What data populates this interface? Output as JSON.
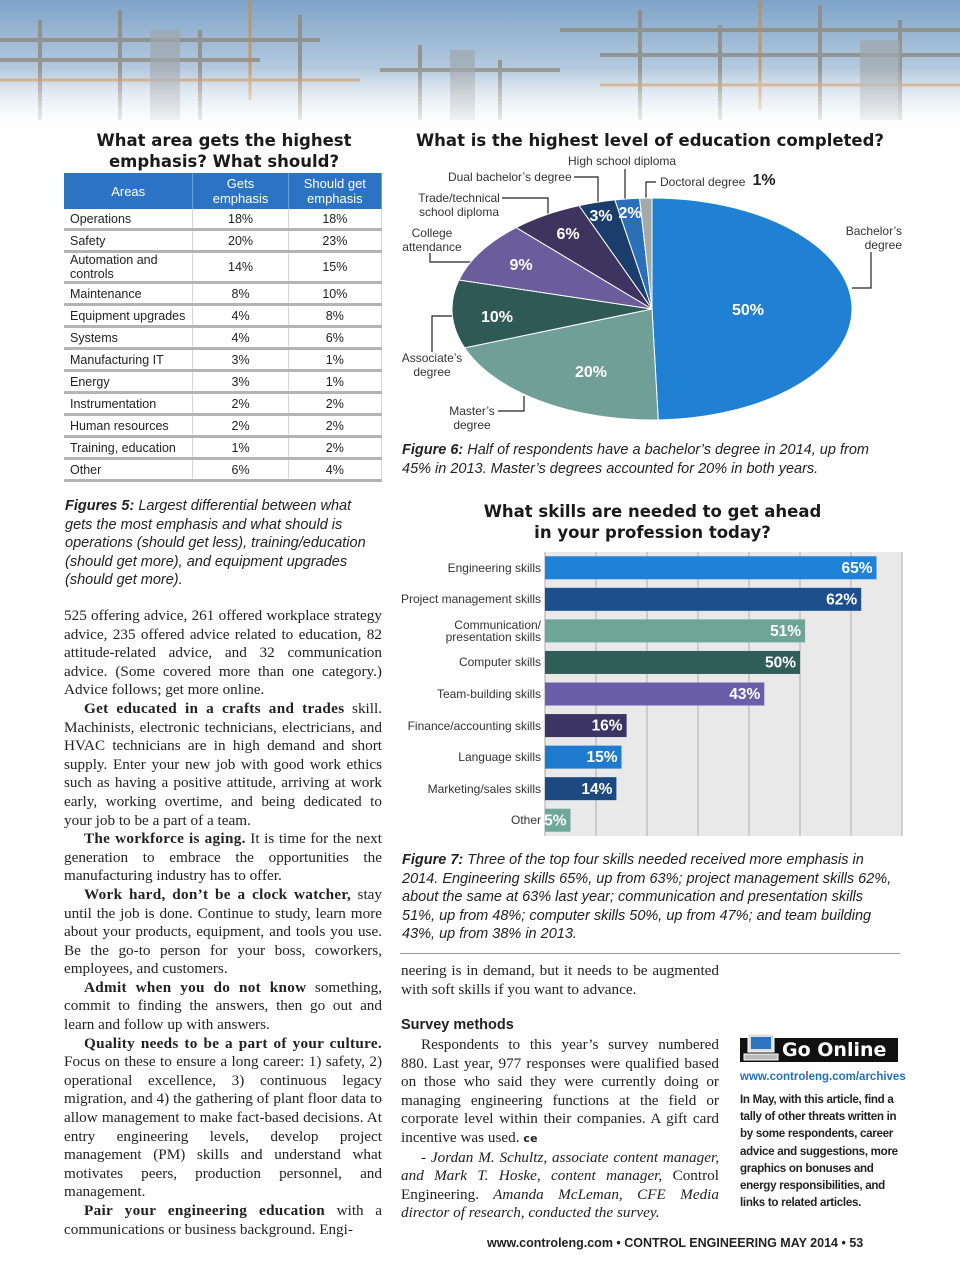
{
  "table": {
    "title": "What area gets the highest emphasis? What should?",
    "header": [
      "Areas",
      "Gets emphasis",
      "Should get emphasis"
    ],
    "rows": [
      [
        "Operations",
        "18%",
        "18%"
      ],
      [
        "Safety",
        "20%",
        "23%"
      ],
      [
        "Automation and controls",
        "14%",
        "15%"
      ],
      [
        "Maintenance",
        "8%",
        "10%"
      ],
      [
        "Equipment upgrades",
        "4%",
        "8%"
      ],
      [
        "Systems",
        "4%",
        "6%"
      ],
      [
        "Manufacturing IT",
        "3%",
        "1%"
      ],
      [
        "Energy",
        "3%",
        "1%"
      ],
      [
        "Instrumentation",
        "2%",
        "2%"
      ],
      [
        "Human resources",
        "2%",
        "2%"
      ],
      [
        "Training, education",
        "1%",
        "2%"
      ],
      [
        "Other",
        "6%",
        "4%"
      ]
    ],
    "caption": {
      "label": "Figures 5:",
      "text": " Largest differential between what gets the most emphasis and what should is operations (should get less), training/education (should get more), and equipment upgrades (should get more)."
    }
  },
  "chart_data": [
    {
      "type": "pie",
      "title": "What is the highest level of education completed?",
      "categories": [
        "Bachelor’s degree",
        "Master’s degree",
        "Associate’s degree",
        "College attendance",
        "Trade/technical school diploma",
        "Dual bachelor’s degree",
        "High school diploma",
        "Doctoral degree"
      ],
      "values": [
        50,
        20,
        10,
        9,
        6,
        3,
        2,
        1
      ],
      "value_labels": [
        "50%",
        "20%",
        "10%",
        "9%",
        "6%",
        "3%",
        "2%",
        "1%"
      ],
      "colors": [
        "#1f80d4",
        "#6f9f97",
        "#2f5955",
        "#6b5c9c",
        "#3d355f",
        "#1b3d6b",
        "#2a70b8",
        "#a3aaa8"
      ],
      "caption": {
        "label": "Figure 6:",
        "text": " Half of respondents have a bachelor’s degree in 2014, up from 45% in 2013. Master’s degrees accounted for 20% in both years."
      }
    },
    {
      "type": "bar",
      "orientation": "horizontal",
      "title": "What skills are needed to get ahead in your profession today?",
      "categories": [
        "Engineering skills",
        "Project management skills",
        "Communication/ presentation skills",
        "Computer skills",
        "Team-building skills",
        "Finance/accounting skills",
        "Language skills",
        "Marketing/sales skills",
        "Other"
      ],
      "values": [
        65,
        62,
        51,
        50,
        43,
        16,
        15,
        14,
        5
      ],
      "value_labels": [
        "65%",
        "62%",
        "51%",
        "50%",
        "43%",
        "16%",
        "15%",
        "14%",
        "5%"
      ],
      "colors": [
        "#1f82d6",
        "#1d4f8c",
        "#6fa597",
        "#2f5f58",
        "#6b5ea8",
        "#3d3466",
        "#1f7bd0",
        "#1c4a80",
        "#6fa898"
      ],
      "xlim": [
        0,
        70
      ],
      "xticks": [
        0,
        10,
        20,
        30,
        40,
        50,
        60,
        70
      ],
      "grid": true,
      "caption": {
        "label": "Figure 7:",
        "text": " Three of the top four skills needed received more emphasis in 2014. Engineering skills 65%, up from 63%; project management skills 62%, about the same at 63% last year; communication and presentation skills 51%, up from 48%; computer skills 50%, up from 47%; and team building 43%, up from 38% in 2013."
      }
    }
  ],
  "body": {
    "left": [
      {
        "text": "525 offering advice, 261 offered workplace strategy advice, 235 offered advice related to education, 82 attitude-related advice, and 32 communication advice. (Some covered more than one category.) Advice follows; get more online."
      },
      {
        "lead": "Get educated in a crafts and trades",
        "text": " skill. Machinists, electronic technicians, electricians, and HVAC technicians are in high demand and short supply. Enter your new job with good work ethics such as having a positive attitude, arriving at work early, working overtime, and being dedicated to your job to be a part of a team."
      },
      {
        "lead": "The workforce is aging.",
        "text": " It is time for the next generation to embrace the opportunities the manufacturing industry has to offer."
      },
      {
        "lead": "Work hard, don’t be a clock watcher,",
        "text": " stay until the job is done. Continue to study, learn more about your products, equipment, and tools you use. Be the go-to person for your boss, coworkers, employees, and customers."
      },
      {
        "lead": "Admit when you do not know",
        "text": " something, commit to finding the answers, then go out and learn and follow up with answers."
      },
      {
        "lead": "Quality needs to be a part of your culture.",
        "text": " Focus on these to ensure a long career: 1) safety, 2) operational excellence, 3) continuous legacy migration, and 4) the gathering of plant floor data to allow management to make fact-based decisions. At entry engineering levels, develop project management (PM) skills and understand what motivates peers, production personnel, and management."
      },
      {
        "lead": "Pair your engineering education",
        "text": " with a communications or business background. Engi-"
      }
    ],
    "right": [
      {
        "text": "neering is in demand, but it needs to be augmented with soft skills if you want to advance."
      }
    ],
    "survey": {
      "heading": "Survey methods",
      "text": "Respondents to this year’s survey numbered 880. Last year, 977 responses were qualified based on those who said they were currently doing or managing engineering functions at the field or corporate level within their companies. A gift card incentive was used.",
      "end_mark": "ce",
      "credit": [
        "- Jordan M. Schultz, associate content manager, and Mark T. Hoske, content manager, ",
        "Control Engineering.",
        " Amanda McLeman, CFE Media director of research, conducted the survey."
      ]
    }
  },
  "sidebar": {
    "title": "Go Online",
    "url": "www.controleng.com/archives",
    "text": "In May, with this article, find a tally of other threats written in by some respondents, career advice and suggestions, more graphics on bonuses and energy responsibilities, and links to related articles."
  },
  "footer": {
    "site": "www.controleng.com",
    "issue": "CONTROL ENGINEERING MAY 2014",
    "page": "53"
  }
}
